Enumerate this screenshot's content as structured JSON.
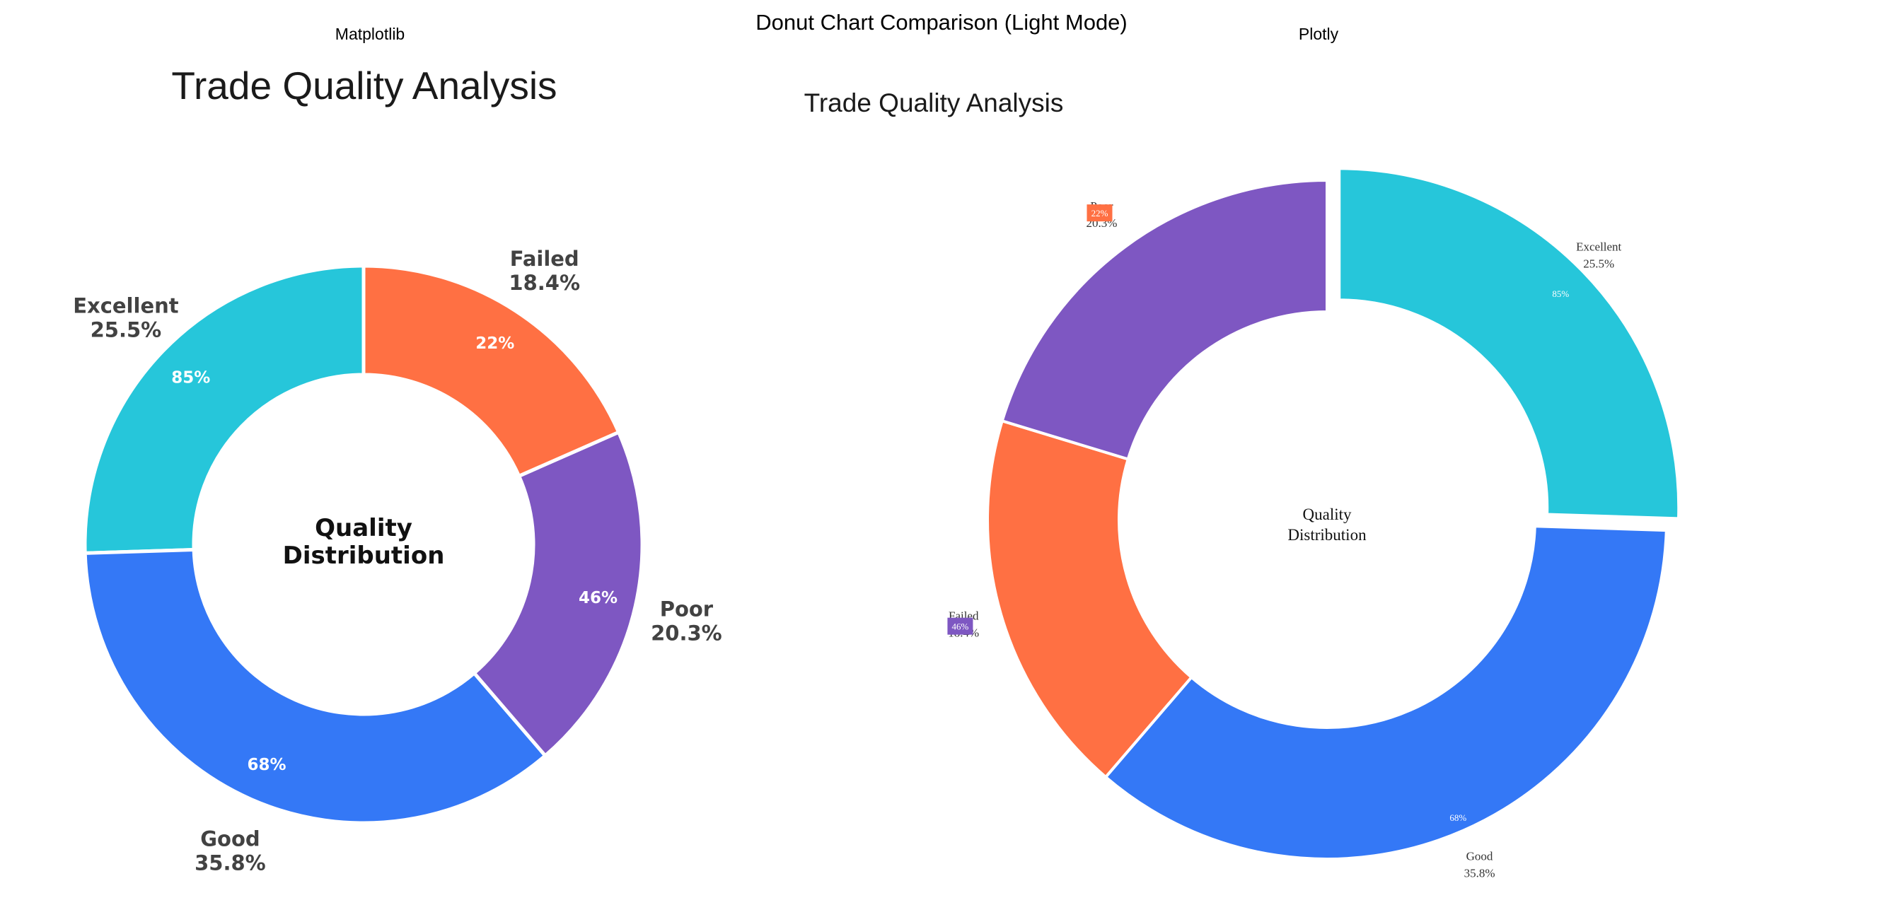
{
  "figure": {
    "suptitle": "Donut Chart Comparison (Light Mode)",
    "left_panel_label": "Matplotlib",
    "right_panel_label": "Plotly"
  },
  "colors": {
    "Excellent": "#26C6DA",
    "Good": "#3478F6",
    "Poor": "#7E57C2",
    "Failed": "#FF7043",
    "label_text": "#424242",
    "title_text": "#1a1a1a"
  },
  "chart_data": [
    {
      "type": "pie",
      "variant": "donut",
      "library": "Matplotlib",
      "title": "Trade Quality Analysis",
      "center_text": [
        "Quality",
        "Distribution"
      ],
      "categories": [
        "Excellent",
        "Good",
        "Poor",
        "Failed"
      ],
      "values": [
        25.5,
        35.8,
        20.3,
        18.4
      ],
      "labels": [
        "25.5%",
        "35.8%",
        "20.3%",
        "18.4%"
      ],
      "inner_labels": [
        "85%",
        "68%",
        "46%",
        "22%"
      ],
      "start_angle_deg": 90,
      "direction": "counterclockwise"
    },
    {
      "type": "pie",
      "variant": "donut",
      "library": "Plotly",
      "title": "Trade Quality Analysis",
      "center_text": [
        "Quality",
        "Distribution"
      ],
      "categories": [
        "Excellent",
        "Good",
        "Failed",
        "Poor"
      ],
      "values": [
        25.5,
        35.8,
        18.4,
        20.3
      ],
      "labels": [
        "25.5%",
        "35.8%",
        "18.4%",
        "20.3%"
      ],
      "inner_labels": [
        "85%",
        "68%",
        "46%",
        "22%"
      ],
      "pulled": [
        "Excellent"
      ],
      "start_angle_deg": 90,
      "direction": "clockwise"
    }
  ]
}
